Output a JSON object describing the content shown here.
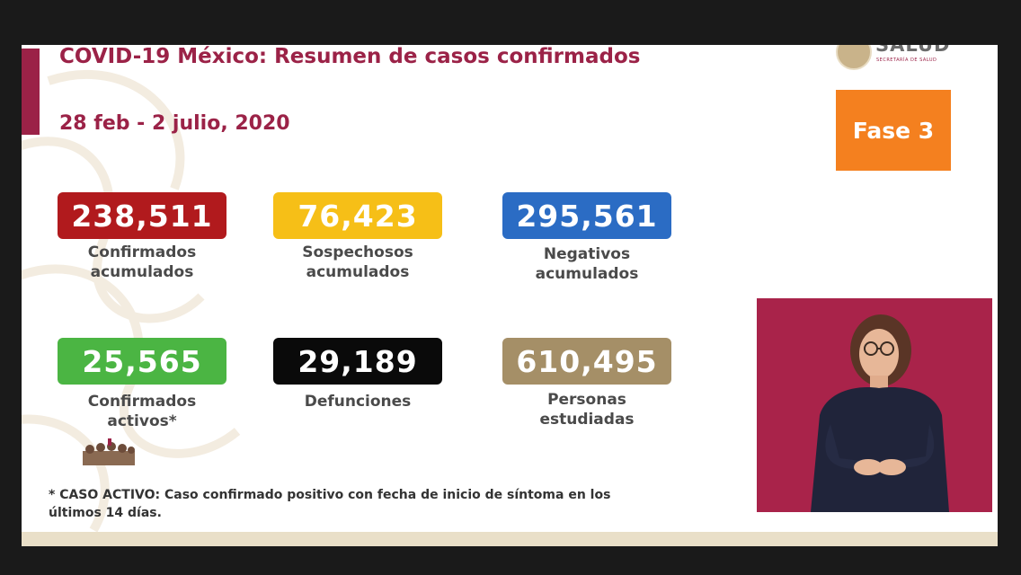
{
  "header": {
    "title": "COVID-19 México: Resumen de casos confirmados",
    "date_range": "28 feb - 2 julio, 2020"
  },
  "logo": {
    "name": "SALUD",
    "subtitle": "SECRETARÍA DE SALUD"
  },
  "phase": {
    "label": "Fase 3"
  },
  "stats": [
    {
      "value": "238,511",
      "label_lines": [
        "Confirmados",
        "acumulados"
      ],
      "color": "#b11a1d"
    },
    {
      "value": "76,423",
      "label_lines": [
        "Sospechosos",
        "acumulados"
      ],
      "color": "#f6bf17"
    },
    {
      "value": "295,561",
      "label_lines": [
        "Negativos",
        "acumulados"
      ],
      "color": "#2b6cc4"
    },
    {
      "value": "25,565",
      "label_lines": [
        "Confirmados",
        "activos*"
      ],
      "color": "#4bb543"
    },
    {
      "value": "29,189",
      "label_lines": [
        "Defunciones"
      ],
      "color": "#0a0a0a"
    },
    {
      "value": "610,495",
      "label_lines": [
        "Personas",
        "estudiadas"
      ],
      "color": "#a58f67"
    }
  ],
  "footnote": {
    "line1": "* CASO ACTIVO: Caso confirmado positivo con fecha de inicio de síntoma en los",
    "line2": "últimos 14 días."
  },
  "colors": {
    "accent": "#9b2247",
    "phase": "#f4801f",
    "interpreter_bg": "#a9234a"
  }
}
